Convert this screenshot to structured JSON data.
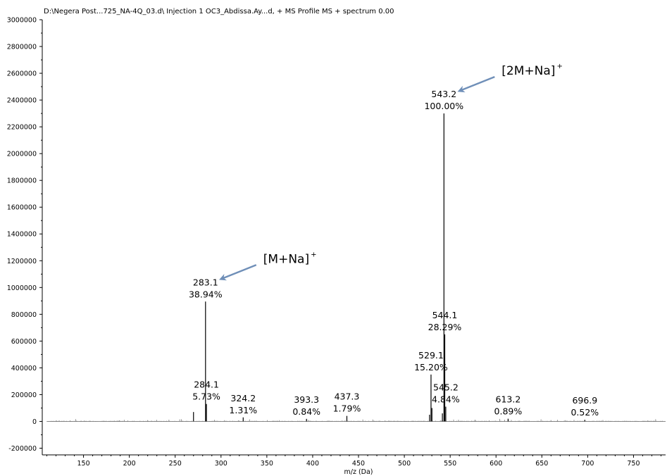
{
  "chart_data": {
    "type": "bar",
    "title": "D:\\Negera Post...725_NA-4Q_03.d\\ Injection 1 OC3_Abdissa.Ay...d, + MS Profile MS + spectrum 0.00",
    "xlabel": "m/z (Da)",
    "ylabel": "",
    "xlim": [
      105,
      785
    ],
    "ylim": [
      -250000,
      3000000
    ],
    "x_ticks": [
      150,
      200,
      250,
      300,
      350,
      400,
      450,
      500,
      550,
      600,
      650,
      700,
      750
    ],
    "y_ticks": [
      3000000,
      2800000,
      2600000,
      2400000,
      2200000,
      2000000,
      1800000,
      1600000,
      1400000,
      1200000,
      1000000,
      800000,
      600000,
      400000,
      200000,
      0,
      -200000
    ],
    "grid": false,
    "peaks": [
      {
        "x": 270.0,
        "y": 70000
      },
      {
        "x": 283.1,
        "y": 895000
      },
      {
        "x": 284.1,
        "y": 130000
      },
      {
        "x": 324.2,
        "y": 30000
      },
      {
        "x": 393.3,
        "y": 19000
      },
      {
        "x": 437.3,
        "y": 41000
      },
      {
        "x": 527.5,
        "y": 50000
      },
      {
        "x": 529.1,
        "y": 350000
      },
      {
        "x": 530.1,
        "y": 100000
      },
      {
        "x": 541.5,
        "y": 60000
      },
      {
        "x": 543.2,
        "y": 2300000
      },
      {
        "x": 544.1,
        "y": 650000
      },
      {
        "x": 545.2,
        "y": 110000
      },
      {
        "x": 613.2,
        "y": 20000
      },
      {
        "x": 696.9,
        "y": 12000
      }
    ],
    "peak_labels": [
      {
        "mz": "283.1",
        "pct": "38.94%",
        "x": 283.1,
        "y": 895000
      },
      {
        "mz": "284.1",
        "pct": "5.73%",
        "x": 284.1,
        "y": 130000
      },
      {
        "mz": "324.2",
        "pct": "1.31%",
        "x": 324.2,
        "y": 30000
      },
      {
        "mz": "393.3",
        "pct": "0.84%",
        "x": 393.3,
        "y": 19000
      },
      {
        "mz": "437.3",
        "pct": "1.79%",
        "x": 437.3,
        "y": 41000
      },
      {
        "mz": "529.1",
        "pct": "15.20%",
        "x": 529.1,
        "y": 350000
      },
      {
        "mz": "543.2",
        "pct": "100.00%",
        "x": 543.2,
        "y": 2300000
      },
      {
        "mz": "544.1",
        "pct": "28.29%",
        "x": 544.1,
        "y": 650000
      },
      {
        "mz": "545.2",
        "pct": "4.84%",
        "x": 545.2,
        "y": 110000
      },
      {
        "mz": "613.2",
        "pct": "0.89%",
        "x": 613.2,
        "y": 20000
      },
      {
        "mz": "696.9",
        "pct": "0.52%",
        "x": 696.9,
        "y": 12000
      }
    ],
    "annotations": [
      {
        "text": "[M+Na]",
        "sup": "+",
        "target_x": 283.1,
        "target_y": 895000
      },
      {
        "text": "[2M+Na]",
        "sup": "+",
        "target_x": 543.2,
        "target_y": 2300000
      }
    ],
    "colors": {
      "peaks": "#000000",
      "arrow": "#6f8fb8"
    }
  }
}
